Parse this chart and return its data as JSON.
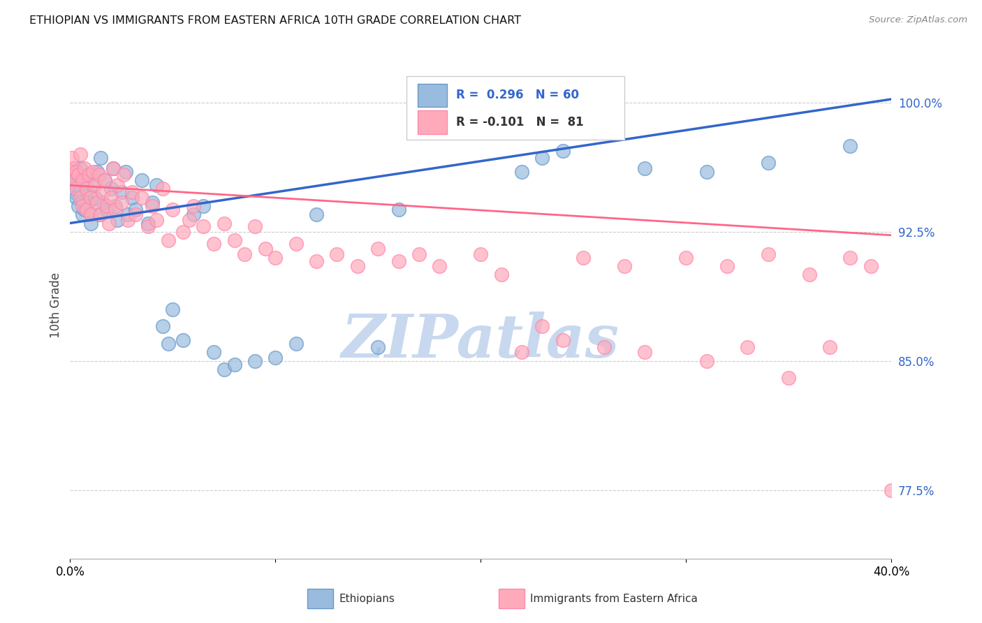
{
  "title": "ETHIOPIAN VS IMMIGRANTS FROM EASTERN AFRICA 10TH GRADE CORRELATION CHART",
  "source": "Source: ZipAtlas.com",
  "ylabel": "10th Grade",
  "xlim": [
    0.0,
    0.4
  ],
  "ylim": [
    0.735,
    1.03
  ],
  "yticks": [
    0.775,
    0.85,
    0.925,
    1.0
  ],
  "ytick_labels": [
    "77.5%",
    "85.0%",
    "92.5%",
    "100.0%"
  ],
  "xticks": [
    0.0,
    0.1,
    0.2,
    0.3,
    0.4
  ],
  "xtick_labels": [
    "0.0%",
    "",
    "",
    "",
    "40.0%"
  ],
  "blue_color": "#99BBDD",
  "pink_color": "#FFAABB",
  "blue_edge_color": "#6699CC",
  "pink_edge_color": "#FF88AA",
  "blue_line_color": "#3366CC",
  "pink_line_color": "#FF6688",
  "ytick_color": "#3366CC",
  "watermark_color": "#C8D8EE",
  "watermark_text": "ZIPatlas",
  "blue_line_y0": 0.93,
  "blue_line_y1": 1.002,
  "pink_line_y0": 0.952,
  "pink_line_y1": 0.923,
  "blue_scatter": [
    [
      0.001,
      0.96
    ],
    [
      0.002,
      0.955
    ],
    [
      0.002,
      0.948
    ],
    [
      0.003,
      0.952
    ],
    [
      0.003,
      0.945
    ],
    [
      0.004,
      0.958
    ],
    [
      0.004,
      0.94
    ],
    [
      0.005,
      0.95
    ],
    [
      0.005,
      0.962
    ],
    [
      0.006,
      0.943
    ],
    [
      0.006,
      0.935
    ],
    [
      0.007,
      0.955
    ],
    [
      0.007,
      0.938
    ],
    [
      0.008,
      0.948
    ],
    [
      0.009,
      0.942
    ],
    [
      0.01,
      0.93
    ],
    [
      0.01,
      0.958
    ],
    [
      0.011,
      0.952
    ],
    [
      0.012,
      0.945
    ],
    [
      0.013,
      0.96
    ],
    [
      0.014,
      0.935
    ],
    [
      0.015,
      0.968
    ],
    [
      0.016,
      0.942
    ],
    [
      0.017,
      0.955
    ],
    [
      0.018,
      0.938
    ],
    [
      0.02,
      0.95
    ],
    [
      0.021,
      0.962
    ],
    [
      0.022,
      0.94
    ],
    [
      0.023,
      0.932
    ],
    [
      0.025,
      0.948
    ],
    [
      0.027,
      0.96
    ],
    [
      0.028,
      0.935
    ],
    [
      0.03,
      0.945
    ],
    [
      0.032,
      0.938
    ],
    [
      0.035,
      0.955
    ],
    [
      0.038,
      0.93
    ],
    [
      0.04,
      0.942
    ],
    [
      0.042,
      0.952
    ],
    [
      0.045,
      0.87
    ],
    [
      0.048,
      0.86
    ],
    [
      0.05,
      0.88
    ],
    [
      0.055,
      0.862
    ],
    [
      0.06,
      0.935
    ],
    [
      0.065,
      0.94
    ],
    [
      0.07,
      0.855
    ],
    [
      0.075,
      0.845
    ],
    [
      0.08,
      0.848
    ],
    [
      0.09,
      0.85
    ],
    [
      0.1,
      0.852
    ],
    [
      0.11,
      0.86
    ],
    [
      0.12,
      0.935
    ],
    [
      0.15,
      0.858
    ],
    [
      0.16,
      0.938
    ],
    [
      0.22,
      0.96
    ],
    [
      0.23,
      0.968
    ],
    [
      0.24,
      0.972
    ],
    [
      0.28,
      0.962
    ],
    [
      0.31,
      0.96
    ],
    [
      0.34,
      0.965
    ],
    [
      0.38,
      0.975
    ]
  ],
  "pink_scatter": [
    [
      0.001,
      0.968
    ],
    [
      0.002,
      0.962
    ],
    [
      0.002,
      0.955
    ],
    [
      0.003,
      0.96
    ],
    [
      0.003,
      0.95
    ],
    [
      0.004,
      0.958
    ],
    [
      0.005,
      0.945
    ],
    [
      0.005,
      0.97
    ],
    [
      0.006,
      0.955
    ],
    [
      0.006,
      0.94
    ],
    [
      0.007,
      0.962
    ],
    [
      0.008,
      0.95
    ],
    [
      0.008,
      0.938
    ],
    [
      0.009,
      0.958
    ],
    [
      0.01,
      0.945
    ],
    [
      0.01,
      0.935
    ],
    [
      0.011,
      0.96
    ],
    [
      0.012,
      0.952
    ],
    [
      0.013,
      0.942
    ],
    [
      0.014,
      0.958
    ],
    [
      0.015,
      0.935
    ],
    [
      0.016,
      0.948
    ],
    [
      0.017,
      0.955
    ],
    [
      0.018,
      0.94
    ],
    [
      0.019,
      0.93
    ],
    [
      0.02,
      0.945
    ],
    [
      0.021,
      0.962
    ],
    [
      0.022,
      0.938
    ],
    [
      0.023,
      0.952
    ],
    [
      0.025,
      0.942
    ],
    [
      0.026,
      0.958
    ],
    [
      0.028,
      0.932
    ],
    [
      0.03,
      0.948
    ],
    [
      0.032,
      0.935
    ],
    [
      0.035,
      0.945
    ],
    [
      0.038,
      0.928
    ],
    [
      0.04,
      0.94
    ],
    [
      0.042,
      0.932
    ],
    [
      0.045,
      0.95
    ],
    [
      0.048,
      0.92
    ],
    [
      0.05,
      0.938
    ],
    [
      0.055,
      0.925
    ],
    [
      0.058,
      0.932
    ],
    [
      0.06,
      0.94
    ],
    [
      0.065,
      0.928
    ],
    [
      0.07,
      0.918
    ],
    [
      0.075,
      0.93
    ],
    [
      0.08,
      0.92
    ],
    [
      0.085,
      0.912
    ],
    [
      0.09,
      0.928
    ],
    [
      0.095,
      0.915
    ],
    [
      0.1,
      0.91
    ],
    [
      0.11,
      0.918
    ],
    [
      0.12,
      0.908
    ],
    [
      0.13,
      0.912
    ],
    [
      0.14,
      0.905
    ],
    [
      0.15,
      0.915
    ],
    [
      0.16,
      0.908
    ],
    [
      0.17,
      0.912
    ],
    [
      0.18,
      0.905
    ],
    [
      0.2,
      0.912
    ],
    [
      0.21,
      0.9
    ],
    [
      0.22,
      0.855
    ],
    [
      0.23,
      0.87
    ],
    [
      0.24,
      0.862
    ],
    [
      0.25,
      0.91
    ],
    [
      0.26,
      0.858
    ],
    [
      0.27,
      0.905
    ],
    [
      0.28,
      0.855
    ],
    [
      0.3,
      0.91
    ],
    [
      0.31,
      0.85
    ],
    [
      0.32,
      0.905
    ],
    [
      0.33,
      0.858
    ],
    [
      0.34,
      0.912
    ],
    [
      0.35,
      0.84
    ],
    [
      0.36,
      0.9
    ],
    [
      0.37,
      0.858
    ],
    [
      0.38,
      0.91
    ],
    [
      0.39,
      0.905
    ],
    [
      0.4,
      0.775
    ]
  ]
}
